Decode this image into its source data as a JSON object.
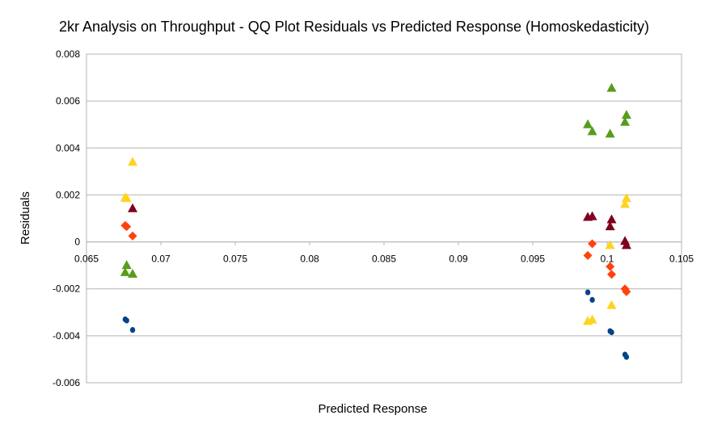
{
  "chart_data": {
    "type": "scatter",
    "title": "2kr Analysis on Throughput - QQ Plot Residuals vs Predicted Response (Homoskedasticity)",
    "xlabel": "Predicted Response",
    "ylabel": "Residuals",
    "xlim": [
      0.065,
      0.105
    ],
    "ylim": [
      -0.006,
      0.008
    ],
    "x_ticks": [
      "0.065",
      "0.07",
      "0.075",
      "0.08",
      "0.085",
      "0.09",
      "0.095",
      "0.1",
      "0.105"
    ],
    "y_ticks": [
      "0.008",
      "0.006",
      "0.004",
      "0.002",
      "0",
      "-0.002",
      "-0.004",
      "-0.006"
    ],
    "grid": "horizontal",
    "legend": "none",
    "series": [
      {
        "marker": "circle",
        "color": "#004586",
        "points": [
          [
            0.0676,
            -0.0033
          ],
          [
            0.0677,
            -0.00335
          ],
          [
            0.0681,
            -0.00375
          ],
          [
            0.0987,
            -0.00215
          ],
          [
            0.099,
            -0.00247
          ],
          [
            0.1002,
            -0.0038
          ],
          [
            0.1003,
            -0.00385
          ],
          [
            0.1012,
            -0.0048
          ],
          [
            0.1013,
            -0.0049
          ]
        ]
      },
      {
        "marker": "diamond",
        "color": "#ff420e",
        "points": [
          [
            0.0676,
            0.0007
          ],
          [
            0.0677,
            0.00065
          ],
          [
            0.0681,
            0.00025
          ],
          [
            0.0987,
            -0.00058
          ],
          [
            0.099,
            -8e-05
          ],
          [
            0.1002,
            -0.00105
          ],
          [
            0.1003,
            -0.00138
          ],
          [
            0.1012,
            -0.002
          ],
          [
            0.1013,
            -0.00212
          ]
        ]
      },
      {
        "marker": "triangle",
        "color": "#ffd320",
        "points": [
          [
            0.0676,
            0.00188
          ],
          [
            0.0677,
            0.00185
          ],
          [
            0.0681,
            0.0034
          ],
          [
            0.0987,
            -0.00338
          ],
          [
            0.099,
            -0.00332
          ],
          [
            0.1002,
            -0.00015
          ],
          [
            0.1003,
            -0.0027
          ],
          [
            0.1012,
            0.0016
          ],
          [
            0.1013,
            0.00185
          ]
        ]
      },
      {
        "marker": "triangle",
        "color": "#579d1c",
        "points": [
          [
            0.0676,
            -0.0013
          ],
          [
            0.0677,
            -0.001
          ],
          [
            0.0681,
            -0.00137
          ],
          [
            0.0987,
            0.005
          ],
          [
            0.099,
            0.0047
          ],
          [
            0.1002,
            0.0046
          ],
          [
            0.1003,
            0.00655
          ],
          [
            0.1012,
            0.0051
          ],
          [
            0.1013,
            0.0054
          ]
        ]
      },
      {
        "marker": "triangle",
        "color": "#7e0021",
        "points": [
          [
            0.0681,
            0.00142
          ],
          [
            0.0987,
            0.00105
          ],
          [
            0.099,
            0.00108
          ],
          [
            0.1002,
            0.00065
          ],
          [
            0.1003,
            0.00095
          ],
          [
            0.1012,
            3e-05
          ],
          [
            0.1013,
            -0.00015
          ]
        ]
      }
    ]
  }
}
